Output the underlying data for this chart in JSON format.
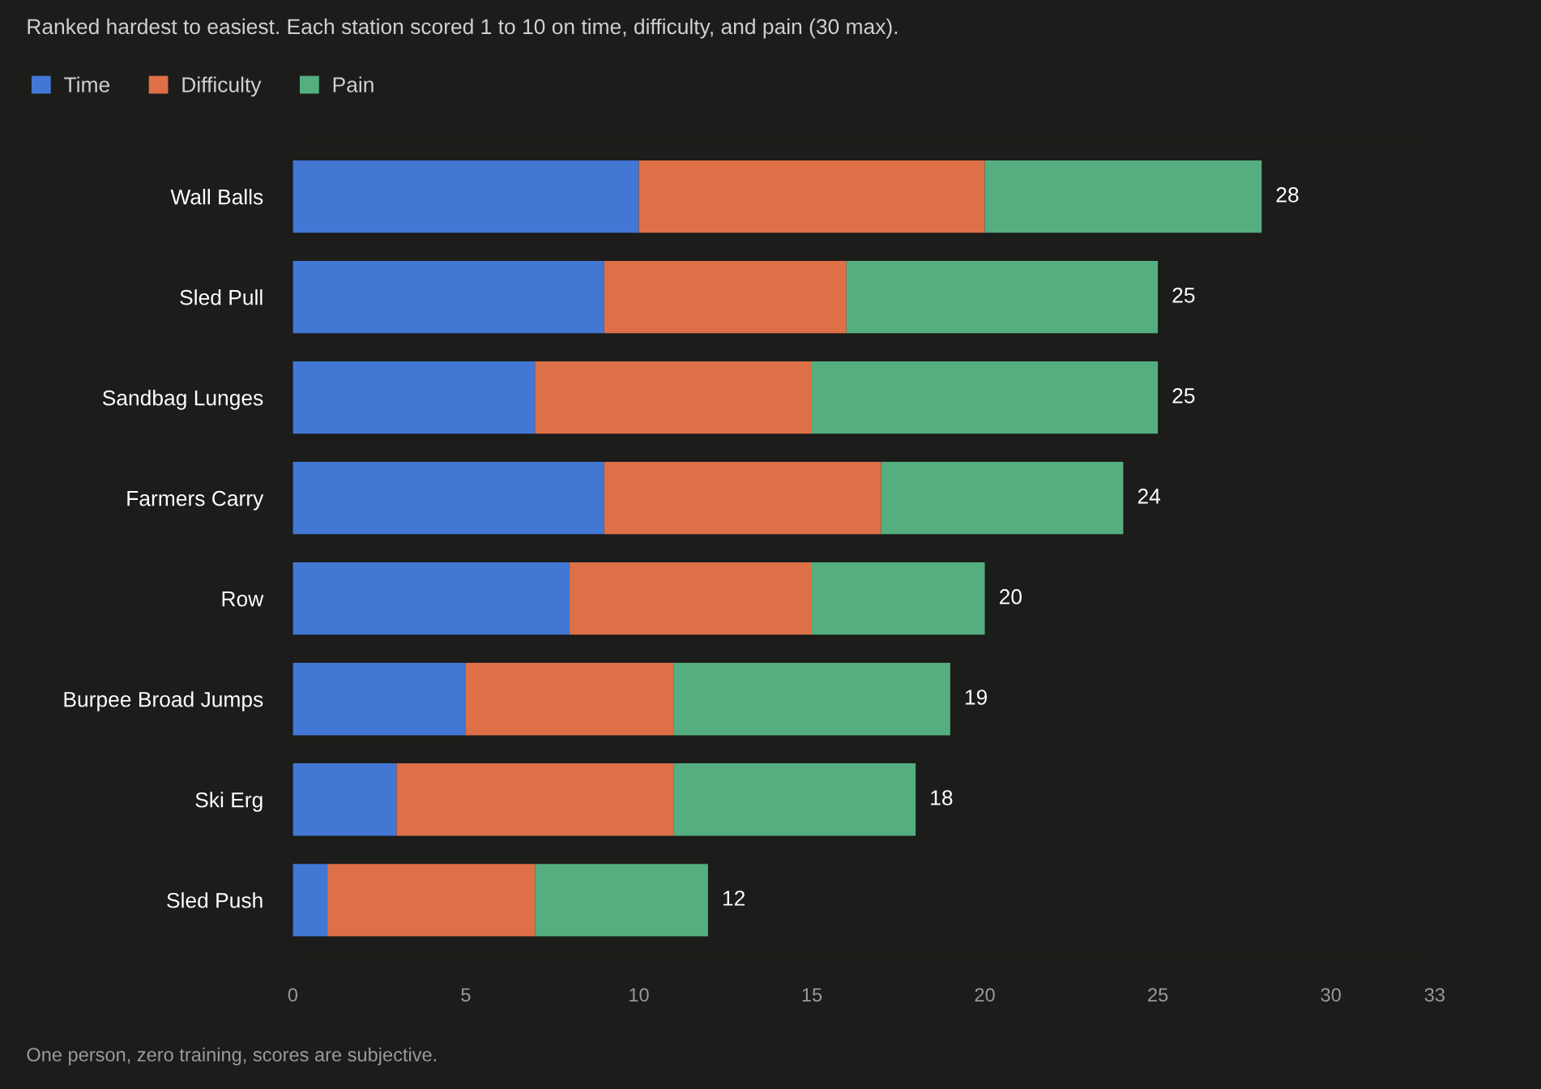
{
  "chart_data": {
    "type": "bar",
    "orientation": "horizontal",
    "stacked": true,
    "title": "Ranked hardest to easiest. Each station scored 1 to 10 on time, difficulty, and pain (30 max).",
    "categories": [
      "Wall Balls",
      "Sled Pull",
      "Sandbag Lunges",
      "Farmers Carry",
      "Row",
      "Burpee Broad Jumps",
      "Ski Erg",
      "Sled Push"
    ],
    "series": [
      {
        "name": "Time",
        "color": "#4277d4",
        "values": [
          10,
          9,
          7,
          9,
          8,
          5,
          3,
          1
        ]
      },
      {
        "name": "Difficulty",
        "color": "#de7047",
        "values": [
          10,
          7,
          8,
          8,
          7,
          6,
          8,
          6
        ]
      },
      {
        "name": "Pain",
        "color": "#55ae80",
        "values": [
          8,
          9,
          10,
          7,
          5,
          8,
          7,
          5
        ]
      }
    ],
    "totals": [
      "28",
      "25",
      "25",
      "24",
      "20",
      "19",
      "18",
      "12"
    ],
    "xlim": [
      0,
      33
    ],
    "xticks": [
      0,
      5,
      10,
      15,
      20,
      25,
      30,
      33
    ],
    "legend": "top left",
    "grid": false,
    "annotations": [
      "One person, zero training, scores are subjective."
    ]
  }
}
